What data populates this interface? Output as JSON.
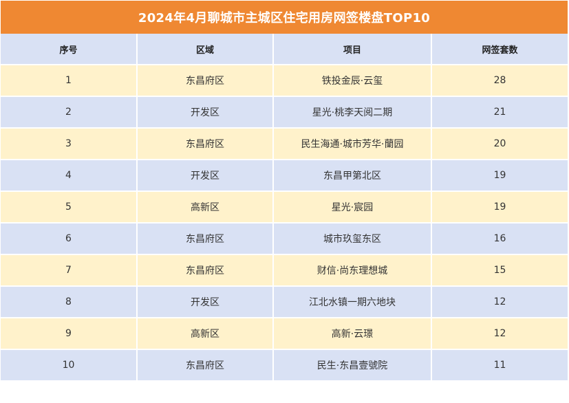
{
  "title": "2024年4月聊城市主城区住宅用房网签楼盘TOP10",
  "colors": {
    "title_bg": "#ef8832",
    "header_bg": "#d9e1f4",
    "row_odd_bg": "#fff2cb",
    "row_even_bg": "#d9e1f4"
  },
  "headers": [
    "序号",
    "区域",
    "项目",
    "网签套数"
  ],
  "rows": [
    {
      "rank": "1",
      "district": "东昌府区",
      "project": "铁投金辰·云玺",
      "count": "28"
    },
    {
      "rank": "2",
      "district": "开发区",
      "project": "星光·桃李天阅二期",
      "count": "21"
    },
    {
      "rank": "3",
      "district": "东昌府区",
      "project": "民生海通·城市芳华·蘭园",
      "count": "20"
    },
    {
      "rank": "4",
      "district": "开发区",
      "project": "东昌甲第北区",
      "count": "19"
    },
    {
      "rank": "5",
      "district": "高新区",
      "project": "星光·宸园",
      "count": "19"
    },
    {
      "rank": "6",
      "district": "东昌府区",
      "project": "城市玖玺东区",
      "count": "16"
    },
    {
      "rank": "7",
      "district": "东昌府区",
      "project": "财信·尚东理想城",
      "count": "15"
    },
    {
      "rank": "8",
      "district": "开发区",
      "project": "江北水镇一期六地块",
      "count": "12"
    },
    {
      "rank": "9",
      "district": "高新区",
      "project": "高新·云璟",
      "count": "12"
    },
    {
      "rank": "10",
      "district": "东昌府区",
      "project": "民生·东昌壹號院",
      "count": "11"
    }
  ]
}
